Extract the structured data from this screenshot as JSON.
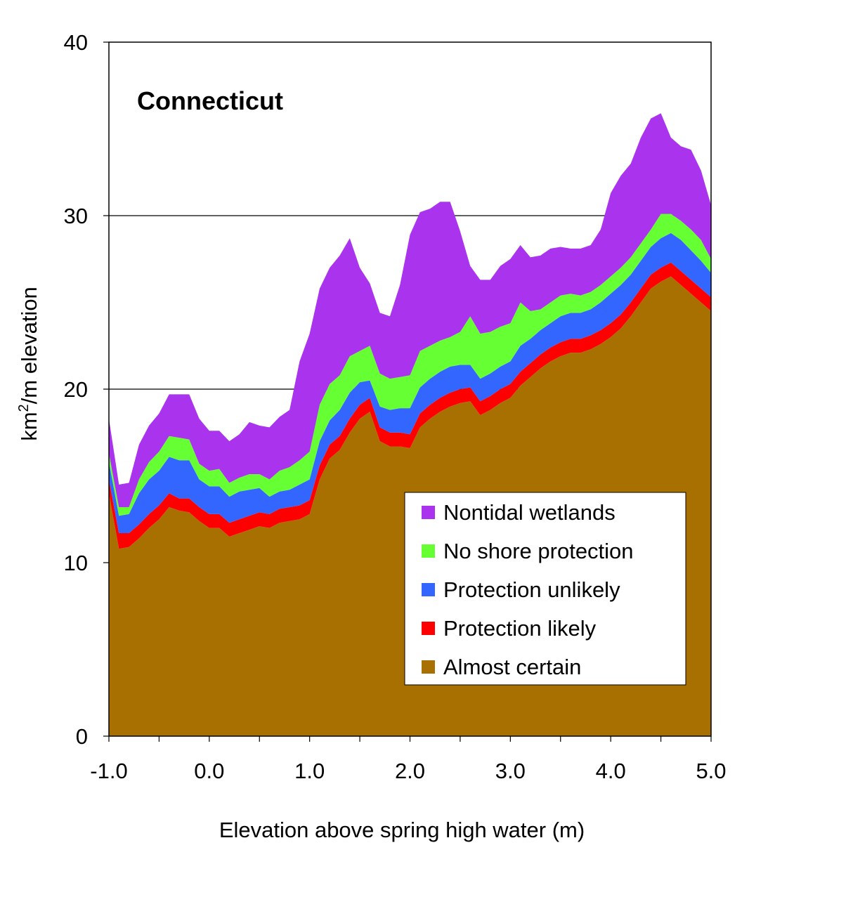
{
  "chart_data": {
    "type": "area",
    "stacked": true,
    "title": "Connecticut",
    "xlabel": "Elevation above spring high water (m)",
    "ylabel_main": "km",
    "ylabel_sup": "2",
    "ylabel_rest": "/m elevation",
    "xlim": [
      -1.0,
      5.0
    ],
    "ylim": [
      0,
      40
    ],
    "x_ticks": [
      -1.0,
      0.0,
      1.0,
      2.0,
      3.0,
      4.0,
      5.0
    ],
    "x_tick_labels": [
      "-1.0",
      "0.0",
      "1.0",
      "2.0",
      "3.0",
      "4.0",
      "5.0"
    ],
    "y_ticks": [
      0,
      10,
      20,
      30,
      40
    ],
    "y_tick_labels": [
      "0",
      "10",
      "20",
      "30",
      "40"
    ],
    "gridlines_y": [
      20,
      30
    ],
    "legend_position": "bottom-right",
    "x": [
      -1.0,
      -0.9,
      -0.8,
      -0.7,
      -0.6,
      -0.5,
      -0.4,
      -0.3,
      -0.2,
      -0.1,
      0.0,
      0.1,
      0.2,
      0.3,
      0.4,
      0.5,
      0.6,
      0.7,
      0.8,
      0.9,
      1.0,
      1.1,
      1.2,
      1.3,
      1.4,
      1.5,
      1.6,
      1.7,
      1.8,
      1.9,
      2.0,
      2.1,
      2.2,
      2.3,
      2.4,
      2.5,
      2.6,
      2.7,
      2.8,
      2.9,
      3.0,
      3.1,
      3.2,
      3.3,
      3.4,
      3.5,
      3.6,
      3.7,
      3.8,
      3.9,
      4.0,
      4.1,
      4.2,
      4.3,
      4.4,
      4.5,
      4.6,
      4.7,
      4.8,
      4.9,
      5.0
    ],
    "series": [
      {
        "name": "Almost certain",
        "color": "#a87000",
        "values": [
          14.0,
          10.8,
          10.9,
          11.4,
          12.0,
          12.5,
          13.2,
          13.0,
          12.9,
          12.4,
          12.0,
          12.0,
          11.5,
          11.7,
          11.9,
          12.1,
          12.0,
          12.3,
          12.4,
          12.5,
          12.8,
          14.8,
          16.0,
          16.5,
          17.5,
          18.3,
          18.7,
          17.0,
          16.7,
          16.7,
          16.6,
          17.8,
          18.3,
          18.7,
          19.0,
          19.2,
          19.3,
          18.5,
          18.8,
          19.2,
          19.5,
          20.2,
          20.7,
          21.2,
          21.6,
          21.9,
          22.1,
          22.1,
          22.3,
          22.6,
          23.0,
          23.5,
          24.2,
          25.0,
          25.8,
          26.2,
          26.5,
          26.0,
          25.5,
          25.0,
          24.5
        ],
        "cumulative": [
          14.0,
          10.8,
          10.9,
          11.4,
          12.0,
          12.5,
          13.2,
          13.0,
          12.9,
          12.4,
          12.0,
          12.0,
          11.5,
          11.7,
          11.9,
          12.1,
          12.0,
          12.3,
          12.4,
          12.5,
          12.8,
          14.8,
          16.0,
          16.5,
          17.5,
          18.3,
          18.7,
          17.0,
          16.7,
          16.7,
          16.6,
          17.8,
          18.3,
          18.7,
          19.0,
          19.2,
          19.3,
          18.5,
          18.8,
          19.2,
          19.5,
          20.2,
          20.7,
          21.2,
          21.6,
          21.9,
          22.1,
          22.1,
          22.3,
          22.6,
          23.0,
          23.5,
          24.2,
          25.0,
          25.8,
          26.2,
          26.5,
          26.0,
          25.5,
          25.0,
          24.5
        ]
      },
      {
        "name": "Protection likely",
        "color": "#ff0000",
        "values": [
          0.8,
          0.9,
          0.8,
          0.8,
          0.8,
          0.8,
          0.8,
          0.7,
          0.8,
          0.8,
          0.8,
          0.8,
          0.8,
          0.8,
          0.8,
          0.8,
          0.8,
          0.8,
          0.8,
          0.8,
          0.8,
          0.8,
          0.8,
          0.8,
          0.8,
          0.8,
          0.8,
          0.8,
          0.8,
          0.8,
          0.8,
          0.8,
          0.8,
          0.8,
          0.8,
          0.8,
          0.8,
          0.8,
          0.8,
          0.8,
          0.8,
          0.8,
          0.8,
          0.8,
          0.8,
          0.8,
          0.8,
          0.8,
          0.8,
          0.8,
          0.8,
          0.8,
          0.8,
          0.8,
          0.8,
          0.8,
          0.8,
          0.8,
          0.8,
          0.8,
          0.8
        ],
        "cumulative": [
          14.8,
          11.7,
          11.7,
          12.2,
          12.8,
          13.3,
          14.0,
          13.7,
          13.7,
          13.2,
          12.8,
          12.8,
          12.3,
          12.5,
          12.7,
          12.9,
          12.8,
          13.1,
          13.2,
          13.3,
          13.6,
          15.6,
          16.8,
          17.3,
          18.3,
          19.1,
          19.5,
          17.8,
          17.5,
          17.5,
          17.4,
          18.6,
          19.1,
          19.5,
          19.8,
          20.0,
          20.1,
          19.3,
          19.6,
          20.0,
          20.3,
          21.0,
          21.5,
          22.0,
          22.4,
          22.7,
          22.9,
          22.9,
          23.1,
          23.4,
          23.8,
          24.3,
          25.0,
          25.8,
          26.6,
          27.0,
          27.3,
          26.8,
          26.3,
          25.8,
          25.3
        ]
      },
      {
        "name": "Protection unlikely",
        "color": "#3366ff",
        "values": [
          1.0,
          1.0,
          1.1,
          1.8,
          2.0,
          2.0,
          2.1,
          2.2,
          2.2,
          1.6,
          1.6,
          1.6,
          1.5,
          1.6,
          1.5,
          1.4,
          1.0,
          1.0,
          1.0,
          1.2,
          1.2,
          1.4,
          1.4,
          1.5,
          1.5,
          1.3,
          1.0,
          1.2,
          1.3,
          1.4,
          1.5,
          1.5,
          1.5,
          1.5,
          1.5,
          1.4,
          1.3,
          1.3,
          1.3,
          1.3,
          1.3,
          1.5,
          1.4,
          1.4,
          1.4,
          1.5,
          1.5,
          1.5,
          1.5,
          1.6,
          1.7,
          1.7,
          1.6,
          1.6,
          1.6,
          1.7,
          1.7,
          1.8,
          1.7,
          1.6,
          1.4
        ],
        "cumulative": [
          15.8,
          12.7,
          12.8,
          14.0,
          14.8,
          15.3,
          16.1,
          15.9,
          15.9,
          14.8,
          14.4,
          14.4,
          13.8,
          14.1,
          14.2,
          14.3,
          13.8,
          14.1,
          14.2,
          14.5,
          14.8,
          17.0,
          18.2,
          18.8,
          19.8,
          20.4,
          20.5,
          19.0,
          18.8,
          18.9,
          18.9,
          20.1,
          20.6,
          21.0,
          21.3,
          21.4,
          21.4,
          20.6,
          20.9,
          21.3,
          21.6,
          22.5,
          22.9,
          23.4,
          23.8,
          24.2,
          24.4,
          24.4,
          24.6,
          25.0,
          25.5,
          26.0,
          26.6,
          27.4,
          28.2,
          28.7,
          29.0,
          28.6,
          28.0,
          27.4,
          26.7
        ]
      },
      {
        "name": "No shore protection",
        "color": "#66ff33",
        "values": [
          0.5,
          0.5,
          0.4,
          0.8,
          1.0,
          1.1,
          1.2,
          1.3,
          1.2,
          0.9,
          0.9,
          1.0,
          0.8,
          0.8,
          0.9,
          0.8,
          1.0,
          1.2,
          1.3,
          1.4,
          1.6,
          2.1,
          2.1,
          2.0,
          2.1,
          1.8,
          2.0,
          1.9,
          1.8,
          1.8,
          1.9,
          2.1,
          1.9,
          1.8,
          1.7,
          1.9,
          2.8,
          2.6,
          2.4,
          2.3,
          2.2,
          2.5,
          1.6,
          1.2,
          1.2,
          1.2,
          1.1,
          1.0,
          1.0,
          1.0,
          1.0,
          1.0,
          1.0,
          1.0,
          1.0,
          1.4,
          1.1,
          1.1,
          1.2,
          1.2,
          0.8
        ],
        "cumulative": [
          16.3,
          13.2,
          13.2,
          14.8,
          15.8,
          16.4,
          17.3,
          17.2,
          17.1,
          15.7,
          15.3,
          15.4,
          14.6,
          14.9,
          15.1,
          15.1,
          14.8,
          15.3,
          15.5,
          15.9,
          16.4,
          19.1,
          20.3,
          20.8,
          21.9,
          22.2,
          22.5,
          20.9,
          20.6,
          20.7,
          20.8,
          22.2,
          22.5,
          22.8,
          23.0,
          23.3,
          24.2,
          23.2,
          23.3,
          23.6,
          23.8,
          25.0,
          24.5,
          24.6,
          25.0,
          25.4,
          25.5,
          25.4,
          25.6,
          26.0,
          26.5,
          27.0,
          27.6,
          28.4,
          29.2,
          30.1,
          30.1,
          29.7,
          29.2,
          28.6,
          27.5
        ]
      },
      {
        "name": "Nontidal wetlands",
        "color": "#aa33ee",
        "values": [
          2.0,
          1.3,
          1.4,
          2.0,
          2.1,
          2.2,
          2.4,
          2.5,
          2.6,
          2.6,
          2.3,
          2.2,
          2.4,
          2.5,
          3.0,
          2.8,
          3.0,
          3.1,
          3.3,
          5.7,
          6.8,
          6.7,
          6.7,
          6.9,
          6.8,
          4.8,
          3.6,
          3.5,
          3.6,
          5.3,
          8.1,
          8.0,
          7.9,
          8.0,
          7.8,
          5.8,
          2.9,
          3.1,
          3.0,
          3.5,
          3.7,
          3.3,
          3.1,
          3.1,
          3.1,
          2.8,
          2.6,
          2.7,
          2.7,
          3.2,
          4.8,
          5.3,
          5.4,
          6.1,
          6.4,
          5.8,
          4.4,
          4.3,
          4.6,
          4.0,
          3.1
        ],
        "cumulative": [
          18.3,
          14.5,
          14.6,
          16.8,
          17.9,
          18.6,
          19.7,
          19.7,
          19.7,
          18.3,
          17.6,
          17.6,
          17.0,
          17.4,
          18.1,
          17.9,
          17.8,
          18.4,
          18.8,
          21.6,
          23.2,
          25.8,
          27.0,
          27.7,
          28.7,
          27.0,
          26.1,
          24.4,
          24.2,
          26.0,
          28.9,
          30.2,
          30.4,
          30.8,
          30.8,
          29.1,
          27.1,
          26.3,
          26.3,
          27.1,
          27.5,
          28.3,
          27.6,
          27.7,
          28.1,
          28.2,
          28.1,
          28.1,
          28.3,
          29.2,
          31.3,
          32.3,
          33.0,
          34.5,
          35.6,
          35.9,
          34.5,
          34.0,
          33.8,
          32.6,
          30.6
        ]
      }
    ],
    "legend_order": [
      "Nontidal wetlands",
      "No shore protection",
      "Protection unlikely",
      "Protection likely",
      "Almost certain"
    ]
  }
}
